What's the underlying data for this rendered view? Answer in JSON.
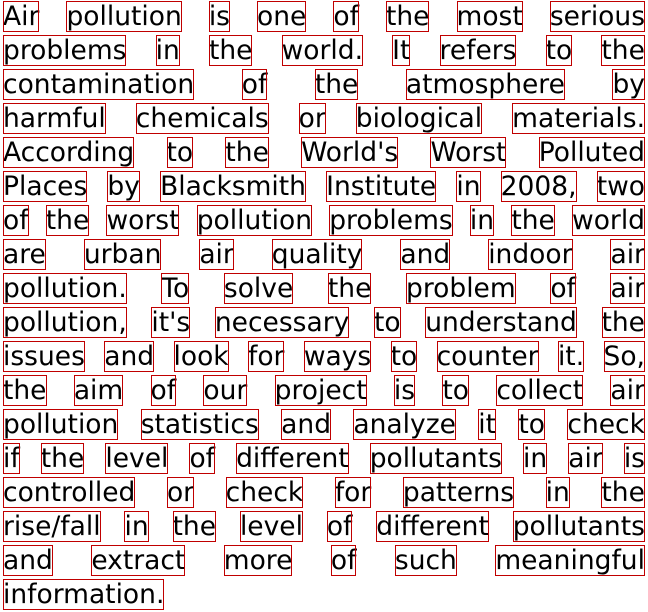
{
  "lines": [
    [
      "Air",
      "pollution",
      "is",
      "one",
      "of",
      "the",
      "most",
      "serious"
    ],
    [
      "problems",
      "in",
      "the",
      "world.",
      "It",
      "refers",
      "to",
      "the"
    ],
    [
      "contamination",
      "of",
      "the",
      "atmosphere",
      "by"
    ],
    [
      "harmful",
      "chemicals",
      "or",
      "biological",
      "materials."
    ],
    [
      "According",
      "to",
      "the",
      "World's",
      "Worst",
      "Polluted"
    ],
    [
      "Places",
      "by",
      "Blacksmith",
      "Institute",
      "in",
      "2008,",
      "two"
    ],
    [
      "of",
      "the",
      "worst",
      "pollution",
      "problems",
      "in",
      "the",
      "world"
    ],
    [
      "are",
      "urban",
      "air",
      "quality",
      "and",
      "indoor",
      "air"
    ],
    [
      "pollution.",
      "To",
      "solve",
      "the",
      "problem",
      "of",
      "air"
    ],
    [
      "pollution,",
      "it's",
      "necessary",
      "to",
      "understand",
      "the"
    ],
    [
      "issues",
      "and",
      "look",
      "for",
      "ways",
      "to",
      "counter",
      "it.",
      "So,"
    ],
    [
      "the",
      "aim",
      "of",
      "our",
      "project",
      "is",
      "to",
      "collect",
      "air"
    ],
    [
      "pollution",
      "statistics",
      "and",
      "analyze",
      "it",
      "to",
      "check"
    ],
    [
      "if",
      "the",
      "level",
      "of",
      "different",
      "pollutants",
      "in",
      "air",
      "is"
    ],
    [
      "controlled",
      "or",
      "check",
      "for",
      "patterns",
      "in",
      "the"
    ],
    [
      "rise/fall",
      "in",
      "the",
      "level",
      "of",
      "different",
      "pollutants"
    ],
    [
      "and",
      "extract",
      "more",
      "of",
      "such",
      "meaningful"
    ],
    [
      "information."
    ]
  ]
}
